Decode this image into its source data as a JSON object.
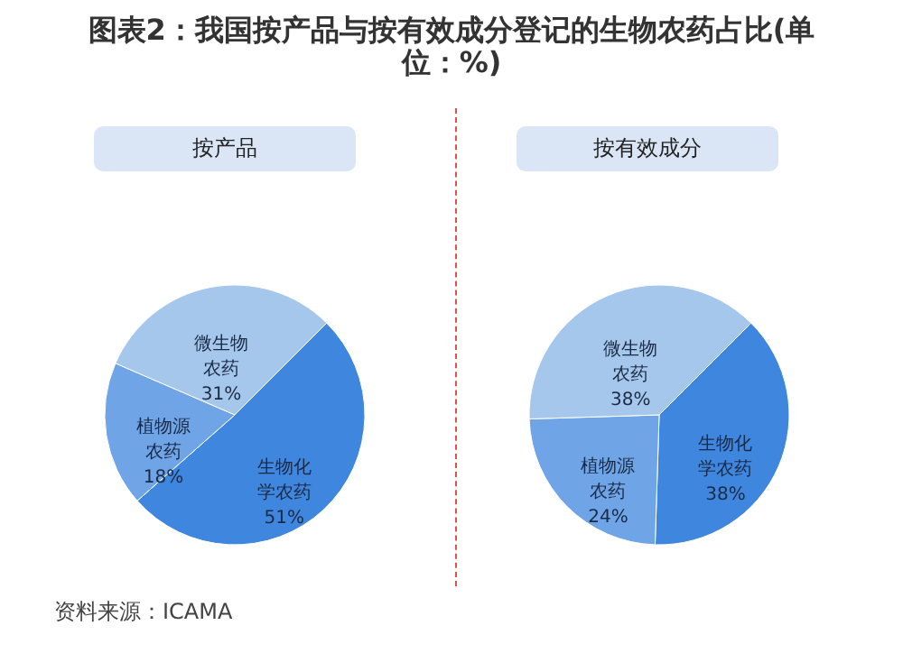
{
  "chart_data": [
    {
      "type": "other",
      "title": "图表2：我国按产品与按有效成分登记的生物农药占比(单位：%)",
      "annotations": [
        "资料来源：ICAMA"
      ]
    },
    {
      "type": "pie",
      "title": "按产品",
      "categories": [
        "生物化学农药",
        "植物源农药",
        "微生物农药"
      ],
      "values": [
        51,
        18,
        31
      ],
      "colors": [
        "#3f86de",
        "#6fa4e7",
        "#a6c7ec"
      ],
      "value_labels": [
        "51%",
        "18%",
        "31%"
      ]
    },
    {
      "type": "pie",
      "title": "按有效成分",
      "categories": [
        "生物化学农药",
        "植物源农药",
        "微生物农药"
      ],
      "values": [
        38,
        24,
        38
      ],
      "colors": [
        "#3f86de",
        "#6fa4e7",
        "#a6c7ec"
      ],
      "value_labels": [
        "38%",
        "24%",
        "38%"
      ]
    }
  ]
}
